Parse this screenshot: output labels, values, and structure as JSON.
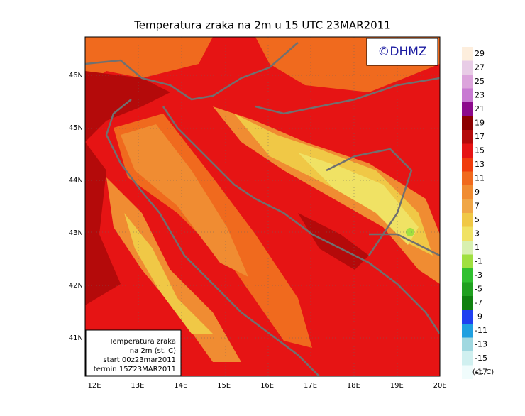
{
  "title": "Temperatura zraka na 2m u 15 UTC 23MAR2011",
  "copyright": "©DHMZ",
  "map": {
    "lon_labels": [
      "12E",
      "13E",
      "14E",
      "15E",
      "16E",
      "17E",
      "18E",
      "19E",
      "20E"
    ],
    "lat_labels": [
      "46N",
      "45N",
      "44N",
      "43N",
      "42N",
      "41N"
    ]
  },
  "info_box": {
    "lines": [
      "Temperatura zraka",
      "na 2m (st. C)",
      "start 00z23mar2011",
      "termin 15Z23MAR2011"
    ]
  },
  "legend": {
    "unit": "(st. C)",
    "levels": [
      {
        "label": "29",
        "color": "#fdeedd"
      },
      {
        "label": "27",
        "color": "#e8cce6"
      },
      {
        "label": "25",
        "color": "#dca4dc"
      },
      {
        "label": "23",
        "color": "#c87ad2"
      },
      {
        "label": "21",
        "color": "#8c0a8c"
      },
      {
        "label": "19",
        "color": "#8c0000"
      },
      {
        "label": "17",
        "color": "#b40a0a"
      },
      {
        "label": "15",
        "color": "#e61414"
      },
      {
        "label": "13",
        "color": "#f03c0c"
      },
      {
        "label": "11",
        "color": "#f06a1e"
      },
      {
        "label": "9",
        "color": "#f08c32"
      },
      {
        "label": "7",
        "color": "#f0a646"
      },
      {
        "label": "5",
        "color": "#f0c846"
      },
      {
        "label": "3",
        "color": "#f0e264"
      },
      {
        "label": "1",
        "color": "#d8f0b0"
      },
      {
        "label": "-1",
        "color": "#a0e040"
      },
      {
        "label": "-3",
        "color": "#30c030"
      },
      {
        "label": "-5",
        "color": "#20a020"
      },
      {
        "label": "-7",
        "color": "#108010"
      },
      {
        "label": "-9",
        "color": "#2040f0"
      },
      {
        "label": "-11",
        "color": "#20a0e0"
      },
      {
        "label": "-13",
        "color": "#a0d8e0"
      },
      {
        "label": "-15",
        "color": "#d0f0f0"
      },
      {
        "label": "-17",
        "color": "#f0fcfc"
      }
    ]
  }
}
